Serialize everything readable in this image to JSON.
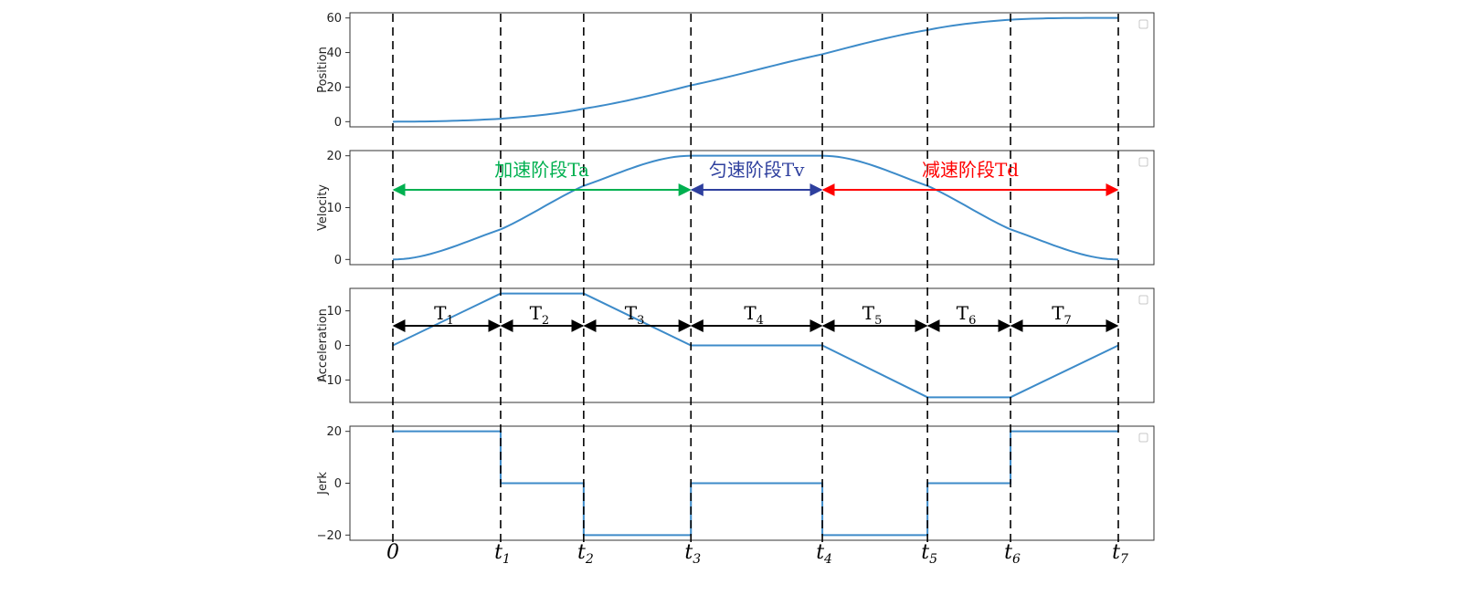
{
  "chart_data": [
    {
      "type": "line",
      "ylabel": "Position",
      "ylim": [
        -3,
        63
      ],
      "yticks": [
        0,
        20,
        40,
        60
      ],
      "x": [
        0,
        1,
        2,
        3,
        4,
        5,
        6,
        7
      ],
      "values": [
        0,
        1.7,
        7.5,
        21,
        39,
        53,
        59,
        60
      ],
      "curve": "smooth"
    },
    {
      "type": "line",
      "ylabel": "Velocity",
      "ylim": [
        -1,
        21
      ],
      "yticks": [
        0,
        10,
        20
      ],
      "x": [
        0,
        1,
        2,
        3,
        4,
        5,
        6,
        7
      ],
      "values": [
        0,
        5.8,
        14.2,
        20,
        20,
        14.2,
        5.8,
        0
      ],
      "curve": "smooth"
    },
    {
      "type": "line",
      "ylabel": "Acceleration",
      "ylim": [
        -16.5,
        16.5
      ],
      "yticks": [
        10,
        0,
        -10
      ],
      "ytick_labels": [
        "10",
        "0",
        "−10"
      ],
      "x": [
        0,
        1,
        2,
        3,
        4,
        5,
        6,
        7
      ],
      "values": [
        0,
        15,
        15,
        0,
        0,
        -15,
        -15,
        0
      ],
      "curve": "linear"
    },
    {
      "type": "line",
      "ylabel": "Jerk",
      "ylim": [
        -22,
        22
      ],
      "yticks": [
        20,
        0,
        -20
      ],
      "ytick_labels": [
        "20",
        "0",
        "−20"
      ],
      "x": [
        0,
        1,
        2,
        3,
        4,
        5,
        6,
        7
      ],
      "values": [
        20,
        0,
        -20,
        0,
        -20,
        0,
        20,
        20
      ],
      "curve": "step"
    }
  ],
  "time_axis": {
    "positions": [
      0,
      1.025,
      1.815,
      2.835,
      4.085,
      5.085,
      5.875,
      6.9
    ],
    "max": 6.9,
    "labels": [
      {
        "main": "0",
        "sub": ""
      },
      {
        "main": "t",
        "sub": "1"
      },
      {
        "main": "t",
        "sub": "2"
      },
      {
        "main": "t",
        "sub": "3"
      },
      {
        "main": "t",
        "sub": "4"
      },
      {
        "main": "t",
        "sub": "5"
      },
      {
        "main": "t",
        "sub": "6"
      },
      {
        "main": "t",
        "sub": "7"
      }
    ]
  },
  "phases": [
    {
      "label": "加速阶段Ta",
      "from": 0,
      "to": 3,
      "color": "#00b050"
    },
    {
      "label": "匀速阶段Tv",
      "from": 3,
      "to": 4,
      "color": "#2e3f9e"
    },
    {
      "label": "减速阶段Td",
      "from": 4,
      "to": 7,
      "color": "#ff0000"
    }
  ],
  "intervals": [
    {
      "main": "T",
      "sub": "1"
    },
    {
      "main": "T",
      "sub": "2"
    },
    {
      "main": "T",
      "sub": "3"
    },
    {
      "main": "T",
      "sub": "4"
    },
    {
      "main": "T",
      "sub": "5"
    },
    {
      "main": "T",
      "sub": "6"
    },
    {
      "main": "T",
      "sub": "7"
    }
  ],
  "colors": {
    "line": "#3d8bc9",
    "axes": "#333333",
    "guide": "#000000",
    "interval_arrow": "#000000"
  }
}
